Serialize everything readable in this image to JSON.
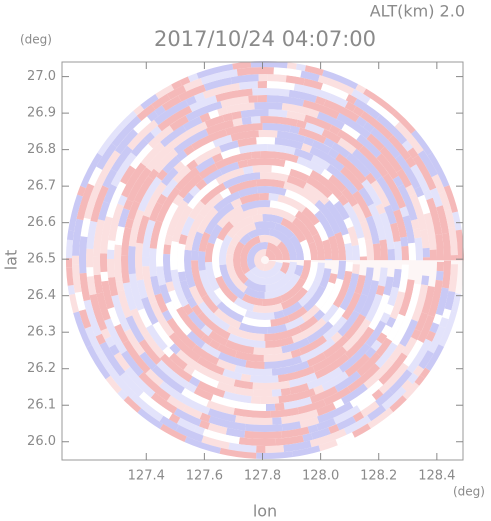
{
  "chart_data": {
    "type": "radar-ppi",
    "altitude_label": "ALT(km) 2.0",
    "title": "2017/10/24 04:07:00",
    "xlabel": "lon",
    "ylabel": "lat",
    "x_unit": "(deg)",
    "y_unit": "(deg)",
    "xlim": [
      127.11,
      128.49
    ],
    "ylim": [
      25.95,
      27.04
    ],
    "xticks": [
      127.4,
      127.6,
      127.8,
      {
        "value": 128.0,
        "label": "128.0"
      },
      128.2,
      128.4
    ],
    "yticks": [
      {
        "value": 26.0,
        "label": "26.0"
      },
      26.1,
      26.2,
      26.3,
      26.4,
      26.5,
      26.6,
      26.7,
      26.8,
      26.9,
      {
        "value": 27.0,
        "label": "27.0"
      }
    ],
    "colors": [
      "#f5b9b9",
      "#c9c9f5",
      "#fbe0e0",
      "#e3e3fb"
    ]
  }
}
